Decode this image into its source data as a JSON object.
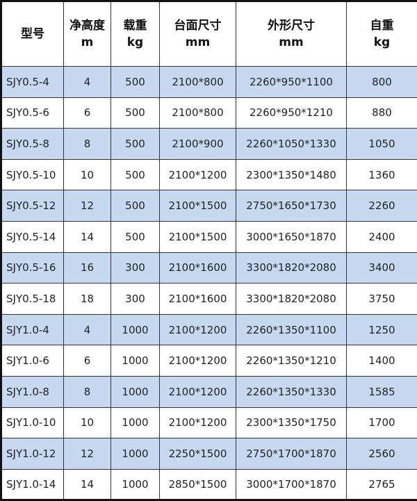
{
  "colors": {
    "accent_row": "#c6d9f1",
    "border": "#333333"
  },
  "headers": [
    {
      "line1": "型号",
      "line2": ""
    },
    {
      "line1": "净高度",
      "line2": "m"
    },
    {
      "line1": "载重",
      "line2": "kg"
    },
    {
      "line1": "台面尺寸",
      "line2": "mm"
    },
    {
      "line1": "外形尺寸",
      "line2": "mm"
    },
    {
      "line1": "自重",
      "line2": "kg"
    }
  ],
  "rows": [
    [
      "SJY0.5-4",
      "4",
      "500",
      "2100*800",
      "2260*950*1100",
      "800"
    ],
    [
      "SJY0.5-6",
      "6",
      "500",
      "2100*800",
      "2260*950*1210",
      "880"
    ],
    [
      "SJY0.5-8",
      "8",
      "500",
      "2100*900",
      "2260*1050*1330",
      "1050"
    ],
    [
      "SJY0.5-10",
      "10",
      "500",
      "2100*1200",
      "2300*1350*1480",
      "1360"
    ],
    [
      "SJY0.5-12",
      "12",
      "500",
      "2100*1500",
      "2750*1650*1730",
      "2260"
    ],
    [
      "SJY0.5-14",
      "14",
      "500",
      "2100*1500",
      "3000*1650*1870",
      "2400"
    ],
    [
      "SJY0.5-16",
      "16",
      "300",
      "2100*1600",
      "3300*1820*2080",
      "3400"
    ],
    [
      "SJY0.5-18",
      "18",
      "300",
      "2100*1600",
      "3300*1820*2080",
      "3750"
    ],
    [
      "SJY1.0-4",
      "4",
      "1000",
      "2100*1200",
      "2260*1350*1100",
      "1250"
    ],
    [
      "SJY1.0-6",
      "6",
      "1000",
      "2100*1200",
      "2260*1350*1210",
      "1400"
    ],
    [
      "SJY1.0-8",
      "8",
      "1000",
      "2100*1200",
      "2260*1350*1330",
      "1585"
    ],
    [
      "SJY1.0-10",
      "10",
      "1000",
      "2100*1200",
      "2300*1350*1750",
      "1700"
    ],
    [
      "SJY1.0-12",
      "12",
      "1000",
      "2250*1500",
      "2750*1700*1870",
      "2560"
    ],
    [
      "SJY1.0-14",
      "14",
      "1000",
      "2850*1500",
      "3000*1700*1870",
      "2765"
    ]
  ]
}
